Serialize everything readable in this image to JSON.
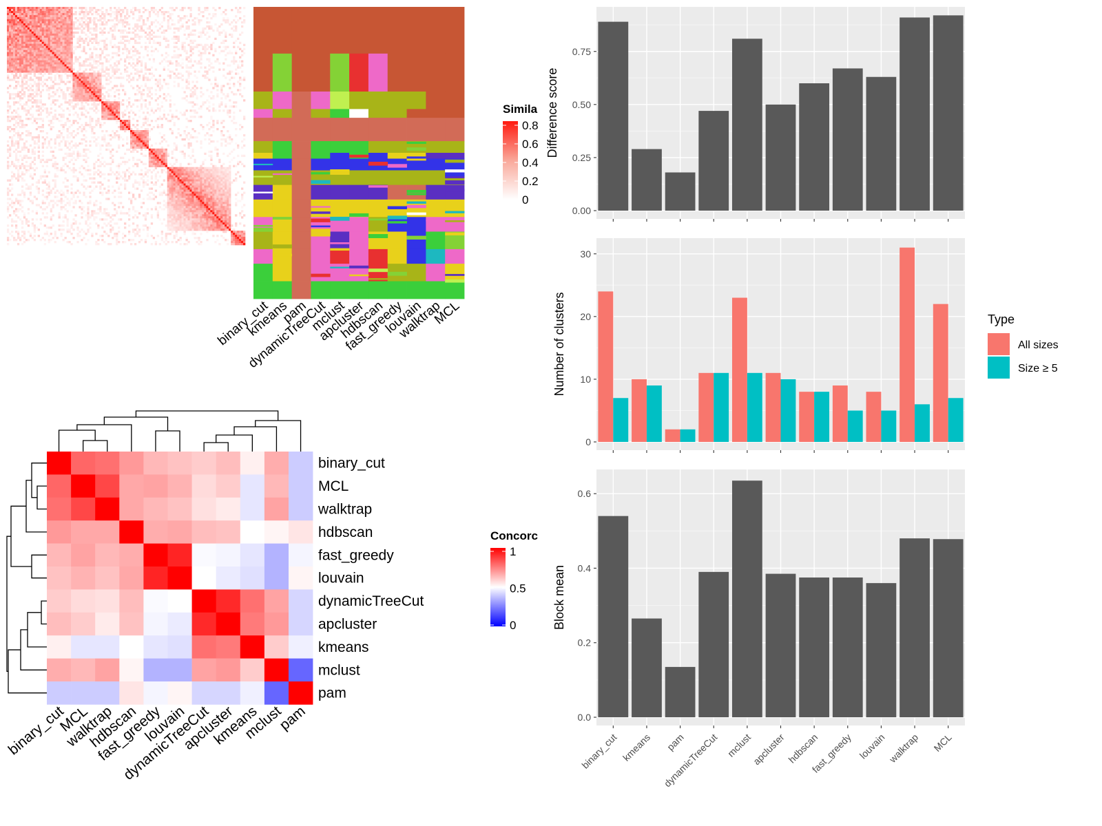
{
  "chart_data": [
    {
      "type": "heatmap",
      "id": "similarity-matrix",
      "description_free": true,
      "legend": {
        "title": "Simila",
        "ticks": [
          "0.8",
          "0.6",
          "0.4",
          "0.2",
          "0"
        ],
        "values": [
          0.8,
          0.6,
          0.4,
          0.2,
          0
        ],
        "colors": [
          "#ffffff",
          "#ff0000"
        ]
      },
      "blocks": [
        {
          "start": 0.0,
          "end": 0.28,
          "strength": 0.85
        },
        {
          "start": 0.28,
          "end": 0.4,
          "strength": 0.9
        },
        {
          "start": 0.4,
          "end": 0.48,
          "strength": 0.95
        },
        {
          "start": 0.48,
          "end": 0.52,
          "strength": 1.0
        },
        {
          "start": 0.52,
          "end": 0.6,
          "strength": 0.9
        },
        {
          "start": 0.6,
          "end": 0.68,
          "strength": 0.9
        },
        {
          "start": 0.68,
          "end": 0.94,
          "strength": 0.95
        },
        {
          "start": 0.94,
          "end": 1.0,
          "strength": 1.0
        }
      ]
    },
    {
      "type": "heatmap",
      "id": "cluster-assignments",
      "columns": [
        "binary_cut",
        "kmeans",
        "pam",
        "dynamicTreeCut",
        "mclust",
        "apcluster",
        "hdbscan",
        "fast_greedy",
        "louvain",
        "walktrap",
        "MCL"
      ],
      "palette": [
        "#c75634",
        "#d26b57",
        "#84d236",
        "#ee69c8",
        "#a8b418",
        "#3333e8",
        "#e8d11b",
        "#5a2fc2",
        "#3bcf3b",
        "#e83030",
        "#c0f050",
        "#ffffff",
        "#1db8c0"
      ]
    },
    {
      "type": "heatmap",
      "id": "concordance-matrix",
      "labels": [
        "binary_cut",
        "MCL",
        "walktrap",
        "hdbscan",
        "fast_greedy",
        "louvain",
        "dynamicTreeCut",
        "apcluster",
        "kmeans",
        "mclust",
        "pam"
      ],
      "values": [
        [
          1.0,
          0.8,
          0.78,
          0.7,
          0.64,
          0.62,
          0.6,
          0.63,
          0.53,
          0.66,
          0.4
        ],
        [
          0.8,
          1.0,
          0.86,
          0.67,
          0.68,
          0.65,
          0.57,
          0.6,
          0.45,
          0.64,
          0.4
        ],
        [
          0.78,
          0.86,
          1.0,
          0.67,
          0.64,
          0.62,
          0.56,
          0.54,
          0.45,
          0.68,
          0.4
        ],
        [
          0.7,
          0.67,
          0.67,
          1.0,
          0.66,
          0.67,
          0.63,
          0.62,
          0.5,
          0.52,
          0.55
        ],
        [
          0.64,
          0.68,
          0.64,
          0.66,
          1.0,
          0.93,
          0.49,
          0.48,
          0.45,
          0.35,
          0.48
        ],
        [
          0.62,
          0.65,
          0.62,
          0.67,
          0.93,
          1.0,
          0.5,
          0.46,
          0.44,
          0.35,
          0.52
        ],
        [
          0.6,
          0.57,
          0.56,
          0.63,
          0.49,
          0.5,
          1.0,
          0.92,
          0.78,
          0.68,
          0.42
        ],
        [
          0.63,
          0.6,
          0.54,
          0.62,
          0.48,
          0.46,
          0.92,
          1.0,
          0.76,
          0.7,
          0.42
        ],
        [
          0.53,
          0.45,
          0.45,
          0.5,
          0.45,
          0.44,
          0.78,
          0.76,
          1.0,
          0.6,
          0.47
        ],
        [
          0.66,
          0.64,
          0.68,
          0.52,
          0.35,
          0.35,
          0.68,
          0.7,
          0.6,
          1.0,
          0.2
        ],
        [
          0.4,
          0.4,
          0.4,
          0.55,
          0.48,
          0.52,
          0.42,
          0.42,
          0.47,
          0.2,
          1.0
        ]
      ],
      "legend": {
        "title": "Concorc",
        "ticks": [
          "1",
          "0.5",
          "0"
        ],
        "values": [
          1,
          0.5,
          0
        ],
        "colors": [
          "#0000ff",
          "#ffffff",
          "#ff0000"
        ]
      }
    },
    {
      "type": "bar",
      "id": "difference-score",
      "categories": [
        "binary_cut",
        "kmeans",
        "pam",
        "dynamicTreeCut",
        "mclust",
        "apcluster",
        "hdbscan",
        "fast_greedy",
        "louvain",
        "walktrap",
        "MCL"
      ],
      "values": [
        0.89,
        0.29,
        0.18,
        0.47,
        0.81,
        0.5,
        0.6,
        0.67,
        0.63,
        0.91,
        0.92
      ],
      "ylabel": "Difference score",
      "ylim": [
        0,
        0.96
      ],
      "yticks": [
        "0.00",
        "0.25",
        "0.50",
        "0.75"
      ],
      "ytick_values": [
        0,
        0.25,
        0.5,
        0.75
      ]
    },
    {
      "type": "bar",
      "id": "number-of-clusters",
      "categories": [
        "binary_cut",
        "kmeans",
        "pam",
        "dynamicTreeCut",
        "mclust",
        "apcluster",
        "hdbscan",
        "fast_greedy",
        "louvain",
        "walktrap",
        "MCL"
      ],
      "series": [
        {
          "name": "All sizes",
          "color": "#f8766d",
          "values": [
            24,
            10,
            2,
            11,
            23,
            11,
            8,
            9,
            8,
            31,
            22
          ]
        },
        {
          "name": "Size ≥ 5",
          "color": "#00bfc4",
          "values": [
            7,
            9,
            2,
            11,
            11,
            10,
            8,
            5,
            5,
            6,
            7
          ]
        }
      ],
      "ylabel": "Number of clusters",
      "ylim": [
        0,
        32.5
      ],
      "yticks": [
        "0",
        "10",
        "20",
        "30"
      ],
      "ytick_values": [
        0,
        10,
        20,
        30
      ],
      "legend": {
        "title": "Type",
        "placement": "right"
      }
    },
    {
      "type": "bar",
      "id": "block-mean",
      "categories": [
        "binary_cut",
        "kmeans",
        "pam",
        "dynamicTreeCut",
        "mclust",
        "apcluster",
        "hdbscan",
        "fast_greedy",
        "louvain",
        "walktrap",
        "MCL"
      ],
      "values": [
        0.54,
        0.265,
        0.135,
        0.39,
        0.635,
        0.385,
        0.375,
        0.375,
        0.36,
        0.48,
        0.478
      ],
      "ylabel": "Block mean",
      "ylim": [
        0,
        0.665
      ],
      "yticks": [
        "0.0",
        "0.2",
        "0.4",
        "0.6"
      ],
      "ytick_values": [
        0,
        0.2,
        0.4,
        0.6
      ]
    }
  ]
}
